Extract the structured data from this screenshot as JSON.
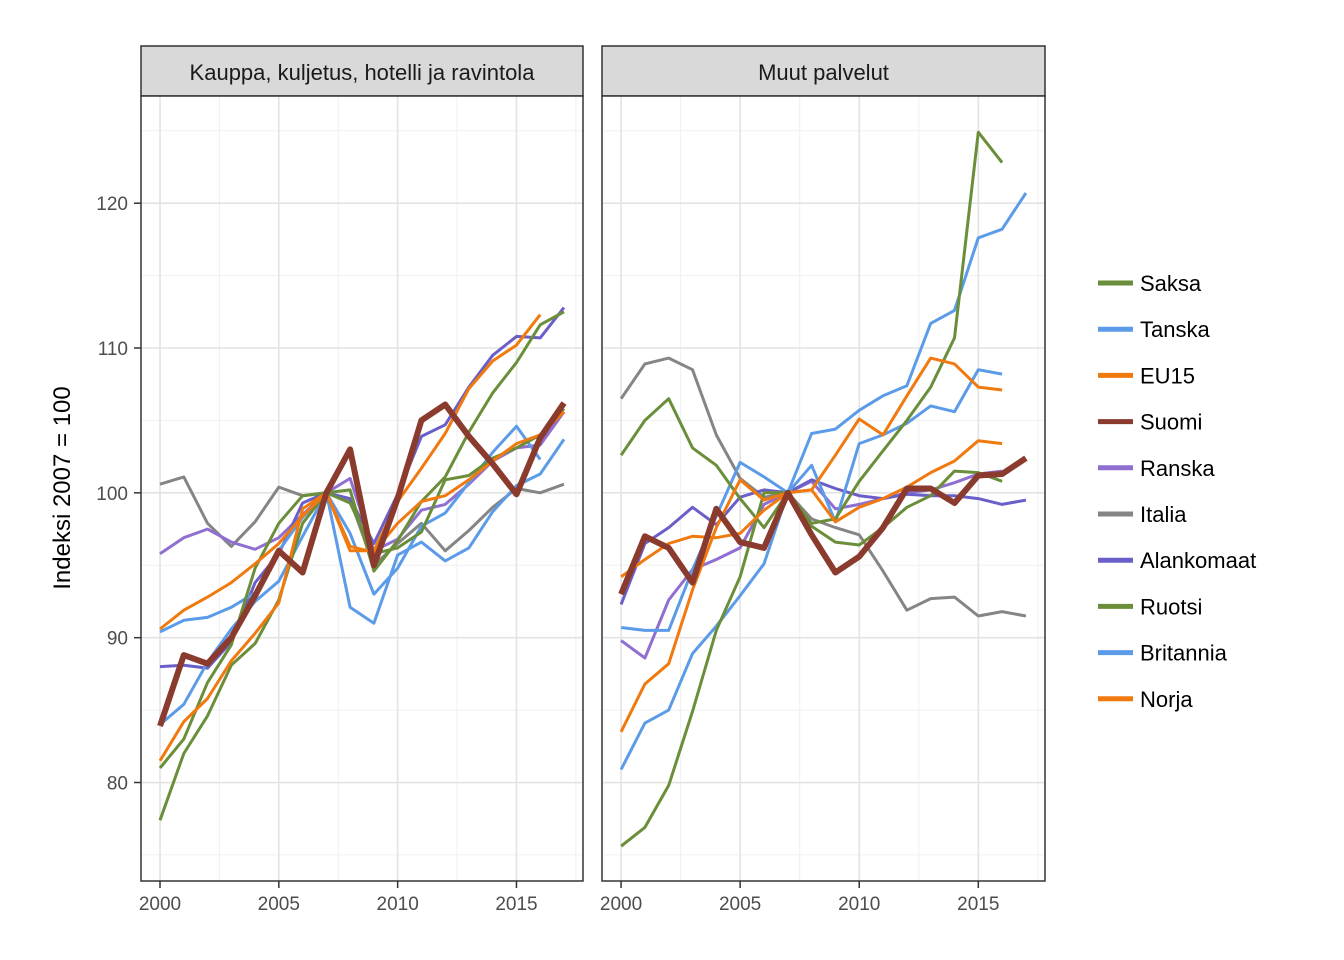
{
  "chart_data": {
    "type": "line",
    "ylabel": "Indeksi 2007 = 100",
    "xlabel": "",
    "xlim": [
      1999.2,
      2017.8
    ],
    "ylim": [
      73.2,
      127.4
    ],
    "x_ticks": [
      2000,
      2005,
      2010,
      2015
    ],
    "y_ticks": [
      80,
      90,
      100,
      110,
      120
    ],
    "grid": true,
    "legend_position": "right",
    "legend": [
      {
        "name": "Saksa",
        "color": "#6b8e3a"
      },
      {
        "name": "Tanska",
        "color": "#5b9be8"
      },
      {
        "name": "EU15",
        "color": "#f07a10"
      },
      {
        "name": "Suomi",
        "color": "#8b3a2e"
      },
      {
        "name": "Ranska",
        "color": "#8f6fd0"
      },
      {
        "name": "Italia",
        "color": "#858585"
      },
      {
        "name": "Alankomaat",
        "color": "#6a5fc8"
      },
      {
        "name": "Ruotsi",
        "color": "#6b8e3a"
      },
      {
        "name": "Britannia",
        "color": "#5b9be8"
      },
      {
        "name": "Norja",
        "color": "#f07a10"
      }
    ],
    "panels": [
      {
        "title": "Kauppa, kuljetus, hotelli ja ravintola",
        "series": [
          {
            "name": "Italia",
            "color": "#858585",
            "width": 3,
            "x": [
              2000,
              2001,
              2002,
              2003,
              2004,
              2005,
              2006,
              2007,
              2008,
              2009,
              2010,
              2011,
              2012,
              2013,
              2014,
              2015,
              2016,
              2017
            ],
            "y": [
              100.6,
              101.1,
              97.9,
              96.3,
              98.0,
              100.4,
              99.8,
              100,
              99.5,
              95.0,
              96.5,
              97.9,
              96.0,
              97.4,
              99.0,
              100.3,
              100.0,
              100.6
            ]
          },
          {
            "name": "Ranska",
            "color": "#8f6fd0",
            "width": 3,
            "x": [
              2000,
              2001,
              2002,
              2003,
              2004,
              2005,
              2006,
              2007,
              2008,
              2009,
              2010,
              2011,
              2012,
              2013,
              2014,
              2015,
              2016,
              2017
            ],
            "y": [
              95.8,
              96.9,
              97.5,
              96.6,
              96.1,
              96.9,
              98.5,
              100,
              101.0,
              96.0,
              96.8,
              98.8,
              99.2,
              100.6,
              102.2,
              103.1,
              103.3,
              105.6
            ]
          },
          {
            "name": "Alankomaat",
            "color": "#6a5fc8",
            "width": 3,
            "x": [
              2000,
              2001,
              2002,
              2003,
              2004,
              2005,
              2006,
              2007,
              2008,
              2009,
              2010,
              2011,
              2012,
              2013,
              2014,
              2015,
              2016,
              2017
            ],
            "y": [
              88.0,
              88.1,
              87.9,
              89.7,
              93.8,
              95.8,
              99.3,
              100,
              99.6,
              96.5,
              99.9,
              103.9,
              104.7,
              107.3,
              109.5,
              110.8,
              110.7,
              112.8
            ]
          },
          {
            "name": "Britannia",
            "color": "#5b9be8",
            "width": 3,
            "x": [
              2000,
              2001,
              2002,
              2003,
              2004,
              2005,
              2006,
              2007,
              2008,
              2009,
              2010,
              2011,
              2012,
              2013,
              2014,
              2015,
              2016,
              2017
            ],
            "y": [
              84.0,
              85.4,
              88.3,
              90.6,
              92.5,
              93.9,
              97.0,
              100,
              92.1,
              91.0,
              95.7,
              96.6,
              95.3,
              96.2,
              98.7,
              100.5,
              101.3,
              103.7
            ]
          },
          {
            "name": "Tanska",
            "color": "#5b9be8",
            "width": 3,
            "x": [
              2000,
              2001,
              2002,
              2003,
              2004,
              2005,
              2006,
              2007,
              2008,
              2009,
              2010,
              2011,
              2012,
              2013,
              2014,
              2015,
              2016
            ],
            "y": [
              90.4,
              91.2,
              91.4,
              92.1,
              93.1,
              96.0,
              98.3,
              100,
              97.2,
              93.0,
              94.8,
              97.7,
              98.6,
              100.7,
              102.8,
              104.6,
              102.3
            ]
          },
          {
            "name": "Ruotsi",
            "color": "#6b8e3a",
            "width": 3,
            "x": [
              2000,
              2001,
              2002,
              2003,
              2004,
              2005,
              2006,
              2007,
              2008,
              2009,
              2010,
              2011,
              2012,
              2013,
              2014,
              2015,
              2016,
              2017
            ],
            "y": [
              77.4,
              82.0,
              84.6,
              88.1,
              89.6,
              92.6,
              97.9,
              100,
              100.2,
              94.6,
              96.7,
              99.4,
              101.1,
              104.2,
              106.9,
              109.0,
              111.6,
              112.5
            ]
          },
          {
            "name": "Saksa",
            "color": "#6b8e3a",
            "width": 3,
            "x": [
              2000,
              2001,
              2002,
              2003,
              2004,
              2005,
              2006,
              2007,
              2008,
              2009,
              2010,
              2011,
              2012,
              2013,
              2014,
              2015,
              2016,
              2017
            ],
            "y": [
              81.0,
              83.0,
              86.9,
              89.5,
              94.8,
              97.9,
              99.8,
              100,
              99.3,
              95.8,
              96.2,
              97.3,
              100.9,
              101.2,
              102.4,
              103.1,
              104.0,
              105.8
            ]
          },
          {
            "name": "Norja",
            "color": "#f07a10",
            "width": 3,
            "x": [
              2000,
              2001,
              2002,
              2003,
              2004,
              2005,
              2006,
              2007,
              2008,
              2009,
              2010,
              2011,
              2012,
              2013,
              2014,
              2015,
              2016
            ],
            "y": [
              81.5,
              84.2,
              85.8,
              88.4,
              90.3,
              92.4,
              98.9,
              100,
              96.0,
              96.0,
              99.4,
              101.7,
              104.1,
              107.2,
              109.1,
              110.2,
              112.3
            ]
          },
          {
            "name": "EU15",
            "color": "#f07a10",
            "width": 3,
            "x": [
              2000,
              2001,
              2002,
              2003,
              2004,
              2005,
              2006,
              2007,
              2008,
              2009,
              2010,
              2011,
              2012,
              2013,
              2014,
              2015,
              2016,
              2017
            ],
            "y": [
              90.6,
              91.9,
              92.8,
              93.8,
              95.1,
              96.5,
              98.4,
              100,
              96.3,
              95.9,
              97.9,
              99.4,
              99.8,
              100.9,
              102.2,
              103.4,
              104.0,
              105.6
            ]
          },
          {
            "name": "Suomi",
            "color": "#8b3a2e",
            "width": 6,
            "x": [
              2000,
              2001,
              2002,
              2003,
              2004,
              2005,
              2006,
              2007,
              2008,
              2009,
              2010,
              2011,
              2012,
              2013,
              2014,
              2015,
              2016,
              2017
            ],
            "y": [
              83.9,
              88.8,
              88.2,
              90.0,
              92.9,
              96.0,
              94.5,
              100,
              103.0,
              95.0,
              99.6,
              105.0,
              106.1,
              103.9,
              102.0,
              99.9,
              103.8,
              106.2
            ]
          }
        ]
      },
      {
        "title": "Muut palvelut",
        "series": [
          {
            "name": "Italia",
            "color": "#858585",
            "width": 3,
            "x": [
              2000,
              2001,
              2002,
              2003,
              2004,
              2005,
              2006,
              2007,
              2008,
              2009,
              2010,
              2011,
              2012,
              2013,
              2014,
              2015,
              2016,
              2017
            ],
            "y": [
              106.5,
              108.9,
              109.3,
              108.5,
              104.0,
              101.0,
              99.7,
              100,
              98.2,
              97.6,
              97.1,
              94.6,
              91.9,
              92.7,
              92.8,
              91.5,
              91.8,
              91.5
            ]
          },
          {
            "name": "Ranska",
            "color": "#8f6fd0",
            "width": 3,
            "x": [
              2000,
              2001,
              2002,
              2003,
              2004,
              2005,
              2006,
              2007,
              2008,
              2009,
              2010,
              2011,
              2012,
              2013,
              2014,
              2015,
              2016
            ],
            "y": [
              89.8,
              88.6,
              92.6,
              94.7,
              95.4,
              96.2,
              99.2,
              100,
              100.8,
              98.9,
              99.2,
              99.6,
              100.0,
              100.2,
              100.7,
              101.3,
              101.5
            ]
          },
          {
            "name": "Alankomaat",
            "color": "#6a5fc8",
            "width": 3,
            "x": [
              2000,
              2001,
              2002,
              2003,
              2004,
              2005,
              2006,
              2007,
              2008,
              2009,
              2010,
              2011,
              2012,
              2013,
              2014,
              2015,
              2016,
              2017
            ],
            "y": [
              92.3,
              96.5,
              97.6,
              99.0,
              97.8,
              99.7,
              100.2,
              100,
              100.9,
              100.3,
              99.8,
              99.6,
              99.9,
              99.8,
              99.8,
              99.6,
              99.2,
              99.5
            ]
          },
          {
            "name": "Tanska",
            "color": "#5b9be8",
            "width": 3,
            "x": [
              2000,
              2001,
              2002,
              2003,
              2004,
              2005,
              2006,
              2007,
              2008,
              2009,
              2010,
              2011,
              2012,
              2013,
              2014,
              2015,
              2016
            ],
            "y": [
              90.7,
              90.5,
              90.5,
              94.7,
              98.4,
              102.1,
              101.1,
              100,
              101.9,
              98.0,
              103.4,
              104.0,
              104.8,
              106.0,
              105.6,
              108.5,
              108.2
            ]
          },
          {
            "name": "Britannia",
            "color": "#5b9be8",
            "width": 3,
            "x": [
              2000,
              2001,
              2002,
              2003,
              2004,
              2005,
              2006,
              2007,
              2008,
              2009,
              2010,
              2011,
              2012,
              2013,
              2014,
              2015,
              2016,
              2017
            ],
            "y": [
              80.9,
              84.1,
              85.0,
              88.9,
              90.8,
              92.9,
              95.1,
              100,
              104.1,
              104.4,
              105.7,
              106.7,
              107.4,
              111.7,
              112.6,
              117.6,
              118.2,
              120.7
            ]
          },
          {
            "name": "Saksa",
            "color": "#6b8e3a",
            "width": 3,
            "x": [
              2000,
              2001,
              2002,
              2003,
              2004,
              2005,
              2006,
              2007,
              2008,
              2009,
              2010,
              2011,
              2012,
              2013,
              2014,
              2015,
              2016
            ],
            "y": [
              102.6,
              105.0,
              106.5,
              103.1,
              101.9,
              99.6,
              97.6,
              100,
              97.7,
              96.6,
              96.4,
              97.6,
              99.0,
              99.8,
              101.5,
              101.4,
              100.8
            ]
          },
          {
            "name": "Ruotsi",
            "color": "#6b8e3a",
            "width": 3,
            "x": [
              2000,
              2001,
              2002,
              2003,
              2004,
              2005,
              2006,
              2007,
              2008,
              2009,
              2010,
              2011,
              2012,
              2013,
              2014,
              2015,
              2016
            ],
            "y": [
              75.6,
              76.9,
              79.8,
              84.9,
              90.5,
              94.2,
              100.0,
              100,
              97.9,
              98.2,
              100.8,
              102.9,
              105.0,
              107.3,
              110.7,
              124.9,
              122.8
            ]
          },
          {
            "name": "EU15",
            "color": "#f07a10",
            "width": 3,
            "x": [
              2000,
              2001,
              2002,
              2003,
              2004,
              2005,
              2006,
              2007,
              2008,
              2009,
              2010,
              2011,
              2012,
              2013,
              2014,
              2015,
              2016
            ],
            "y": [
              94.2,
              95.4,
              96.5,
              97.0,
              96.9,
              97.2,
              98.8,
              100,
              100.2,
              98.0,
              99.0,
              99.6,
              100.4,
              101.4,
              102.2,
              103.6,
              103.4
            ]
          },
          {
            "name": "Norja",
            "color": "#f07a10",
            "width": 3,
            "x": [
              2000,
              2001,
              2002,
              2003,
              2004,
              2005,
              2006,
              2007,
              2008,
              2009,
              2010,
              2011,
              2012,
              2013,
              2014,
              2015,
              2016
            ],
            "y": [
              83.5,
              86.8,
              88.2,
              93.3,
              97.6,
              100.9,
              99.5,
              100,
              100.2,
              102.6,
              105.1,
              104.0,
              106.7,
              109.3,
              108.9,
              107.3,
              107.1
            ]
          },
          {
            "name": "Suomi",
            "color": "#8b3a2e",
            "width": 6,
            "x": [
              2000,
              2001,
              2002,
              2003,
              2004,
              2005,
              2006,
              2007,
              2008,
              2009,
              2010,
              2011,
              2012,
              2013,
              2014,
              2015,
              2016,
              2017
            ],
            "y": [
              93.0,
              97.0,
              96.2,
              93.8,
              98.9,
              96.6,
              96.2,
              100,
              97.1,
              94.5,
              95.6,
              97.6,
              100.3,
              100.3,
              99.3,
              101.2,
              101.3,
              102.4
            ]
          }
        ]
      }
    ]
  }
}
